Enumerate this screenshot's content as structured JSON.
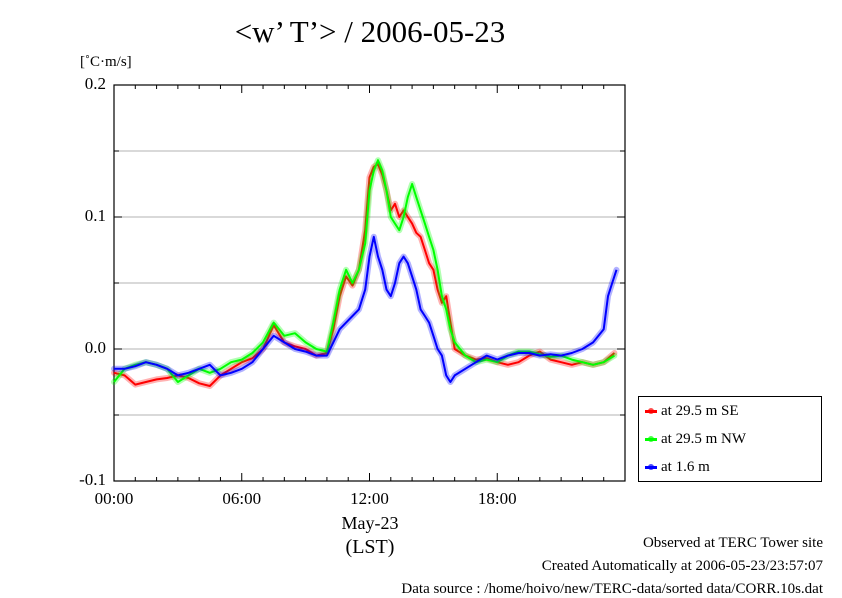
{
  "chart_data": {
    "type": "line",
    "title": "<w’ T’> / 2006-05-23",
    "ylabel": "[˚C·m/s]",
    "ylim": [
      -0.1,
      0.2
    ],
    "yticks": [
      -0.1,
      0.0,
      0.1,
      0.2
    ],
    "ytick_labels": [
      "-0.1",
      "0.0",
      "0.1",
      "0.2"
    ],
    "xlim": [
      0,
      24
    ],
    "xticks": [
      0,
      6,
      12,
      18
    ],
    "xtick_labels": [
      "00:00",
      "06:00",
      "12:00",
      "18:00"
    ],
    "date_label": "May-23",
    "xlabel": "(LST)",
    "grid": true,
    "legend_position": "right-bottom",
    "series": [
      {
        "name": "at 29.5 m SE",
        "color": "#ff0000",
        "x": [
          0.0,
          0.5,
          1.0,
          1.5,
          2.0,
          2.5,
          3.0,
          3.5,
          4.0,
          4.5,
          5.0,
          5.5,
          6.0,
          6.5,
          7.0,
          7.5,
          8.0,
          8.5,
          9.0,
          9.5,
          10.0,
          10.3,
          10.6,
          10.9,
          11.2,
          11.5,
          11.8,
          12.0,
          12.2,
          12.4,
          12.6,
          12.8,
          13.0,
          13.2,
          13.4,
          13.6,
          13.8,
          14.0,
          14.2,
          14.4,
          14.6,
          14.8,
          15.0,
          15.2,
          15.4,
          15.6,
          15.8,
          16.0,
          16.5,
          17.0,
          17.5,
          18.0,
          18.5,
          19.0,
          19.5,
          20.0,
          20.5,
          21.0,
          21.5,
          22.0,
          22.5,
          23.0,
          23.5
        ],
        "values": [
          -0.018,
          -0.02,
          -0.027,
          -0.025,
          -0.023,
          -0.022,
          -0.02,
          -0.022,
          -0.026,
          -0.028,
          -0.02,
          -0.015,
          -0.01,
          -0.007,
          0.0,
          0.018,
          0.005,
          0.002,
          0.0,
          -0.005,
          -0.003,
          0.015,
          0.04,
          0.055,
          0.048,
          0.06,
          0.09,
          0.13,
          0.138,
          0.14,
          0.132,
          0.12,
          0.105,
          0.11,
          0.1,
          0.105,
          0.1,
          0.095,
          0.088,
          0.085,
          0.075,
          0.065,
          0.06,
          0.045,
          0.035,
          0.04,
          0.02,
          0.0,
          -0.005,
          -0.008,
          -0.007,
          -0.01,
          -0.012,
          -0.01,
          -0.005,
          -0.002,
          -0.008,
          -0.01,
          -0.012,
          -0.01,
          -0.012,
          -0.01,
          -0.003
        ]
      },
      {
        "name": "at 29.5 m NW",
        "color": "#00ff00",
        "x": [
          0.0,
          0.5,
          1.0,
          1.5,
          2.0,
          2.5,
          3.0,
          3.5,
          4.0,
          4.5,
          5.0,
          5.5,
          6.0,
          6.5,
          7.0,
          7.5,
          8.0,
          8.5,
          9.0,
          9.5,
          10.0,
          10.3,
          10.6,
          10.9,
          11.2,
          11.5,
          11.8,
          12.0,
          12.2,
          12.4,
          12.6,
          12.8,
          13.0,
          13.2,
          13.4,
          13.6,
          13.8,
          14.0,
          14.2,
          14.4,
          14.6,
          14.8,
          15.0,
          15.2,
          15.4,
          15.6,
          15.8,
          16.0,
          16.5,
          17.0,
          17.5,
          18.0,
          18.5,
          19.0,
          19.5,
          20.0,
          20.5,
          21.0,
          21.5,
          22.0,
          22.5,
          23.0,
          23.5
        ],
        "values": [
          -0.025,
          -0.015,
          -0.012,
          -0.01,
          -0.012,
          -0.015,
          -0.025,
          -0.02,
          -0.015,
          -0.018,
          -0.015,
          -0.01,
          -0.008,
          -0.003,
          0.005,
          0.02,
          0.01,
          0.012,
          0.005,
          0.0,
          -0.002,
          0.02,
          0.045,
          0.06,
          0.05,
          0.06,
          0.08,
          0.12,
          0.135,
          0.143,
          0.135,
          0.12,
          0.1,
          0.095,
          0.09,
          0.1,
          0.115,
          0.125,
          0.115,
          0.105,
          0.095,
          0.085,
          0.075,
          0.06,
          0.04,
          0.03,
          0.015,
          0.005,
          -0.005,
          -0.01,
          -0.008,
          -0.01,
          -0.005,
          -0.002,
          -0.002,
          -0.004,
          -0.006,
          -0.005,
          -0.008,
          -0.01,
          -0.012,
          -0.01,
          -0.005
        ]
      },
      {
        "name": "at 1.6 m",
        "color": "#0000ff",
        "x": [
          0.0,
          0.5,
          1.0,
          1.5,
          2.0,
          2.5,
          3.0,
          3.5,
          4.0,
          4.5,
          5.0,
          5.5,
          6.0,
          6.5,
          7.0,
          7.5,
          8.0,
          8.5,
          9.0,
          9.5,
          10.0,
          10.3,
          10.6,
          10.9,
          11.2,
          11.5,
          11.8,
          12.0,
          12.2,
          12.4,
          12.6,
          12.8,
          13.0,
          13.2,
          13.4,
          13.6,
          13.8,
          14.0,
          14.2,
          14.4,
          14.6,
          14.8,
          15.0,
          15.2,
          15.4,
          15.6,
          15.8,
          16.0,
          16.5,
          17.0,
          17.5,
          18.0,
          18.5,
          19.0,
          19.5,
          20.0,
          20.5,
          21.0,
          21.5,
          22.0,
          22.5,
          23.0,
          23.2,
          23.4,
          23.6
        ],
        "values": [
          -0.015,
          -0.015,
          -0.013,
          -0.01,
          -0.012,
          -0.015,
          -0.02,
          -0.018,
          -0.015,
          -0.012,
          -0.02,
          -0.018,
          -0.015,
          -0.01,
          0.0,
          0.01,
          0.005,
          0.0,
          -0.002,
          -0.005,
          -0.005,
          0.005,
          0.015,
          0.02,
          0.025,
          0.03,
          0.045,
          0.07,
          0.085,
          0.07,
          0.06,
          0.045,
          0.04,
          0.05,
          0.065,
          0.07,
          0.065,
          0.055,
          0.045,
          0.03,
          0.025,
          0.02,
          0.01,
          0.0,
          -0.005,
          -0.02,
          -0.025,
          -0.02,
          -0.015,
          -0.01,
          -0.005,
          -0.008,
          -0.005,
          -0.003,
          -0.003,
          -0.005,
          -0.004,
          -0.005,
          -0.003,
          0.0,
          0.005,
          0.015,
          0.04,
          0.05,
          0.06
        ]
      }
    ]
  },
  "footer": {
    "site": "Observed at TERC Tower site",
    "created": "Created Automatically at 2006-05-23/23:57:07",
    "source": "Data source : /home/hoivo/new/TERC-data/sorted  data/CORR.10s.dat"
  }
}
